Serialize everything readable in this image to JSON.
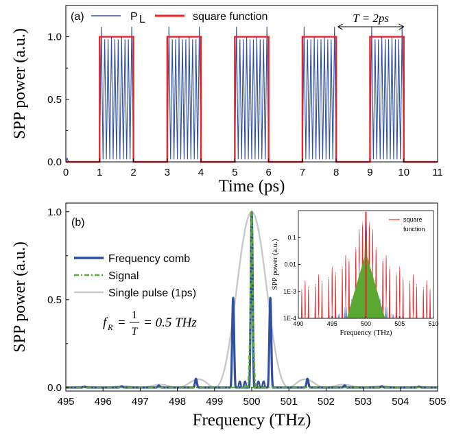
{
  "chart_data": [
    {
      "panel": "(a)",
      "type": "line",
      "xlabel": "Time (ps)",
      "ylabel": "SPP power (a.u.)",
      "xlim": [
        0,
        11
      ],
      "ylim": [
        0,
        1.25
      ],
      "xticks": [
        0,
        1,
        2,
        3,
        4,
        5,
        6,
        7,
        8,
        9,
        10,
        11
      ],
      "yticks": [
        "0.0",
        "0.5",
        "1.0"
      ],
      "grid": false,
      "legend": "top-left",
      "series": [
        {
          "name": "P",
          "name_subscript": "L",
          "color": "#2f4f9f",
          "kind": "pulse-train",
          "oscillation_period_ps": 0.1,
          "peak": 0.98,
          "pulse_start_ps": [
            1,
            3,
            5,
            7,
            9
          ],
          "pulse_width_ps": 1.0
        },
        {
          "name": "square function",
          "color": "#e8232a",
          "on_intervals_ps": [
            [
              1,
              2
            ],
            [
              3,
              4
            ],
            [
              5,
              6
            ],
            [
              7,
              8
            ],
            [
              9,
              10
            ]
          ],
          "low": 0.0,
          "high": 1.0
        }
      ],
      "annotations": [
        {
          "text": "T = 2ps",
          "from_x": 8.05,
          "to_x": 10.0,
          "y": 1.08
        }
      ]
    },
    {
      "panel": "(b)",
      "type": "line",
      "xlabel": "Frequency (THz)",
      "ylabel": "SPP power (a.u.)",
      "xlim": [
        495,
        505
      ],
      "ylim": [
        -0.02,
        1.05
      ],
      "xticks": [
        495,
        496,
        497,
        498,
        499,
        500,
        501,
        502,
        503,
        504,
        505
      ],
      "yticks": [
        "0.0",
        "0.5",
        "1.0"
      ],
      "grid": false,
      "legend": "middle-left",
      "series": [
        {
          "name": "Frequency comb",
          "color": "#2f4f9f",
          "peaks": [
            {
              "x": 495.5,
              "y": 0.005
            },
            {
              "x": 496.5,
              "y": 0.007
            },
            {
              "x": 497.5,
              "y": 0.012
            },
            {
              "x": 498.5,
              "y": 0.05
            },
            {
              "x": 499.5,
              "y": 0.51
            },
            {
              "x": 500.0,
              "y": 1.0
            },
            {
              "x": 500.5,
              "y": 0.51
            },
            {
              "x": 501.5,
              "y": 0.05
            },
            {
              "x": 502.5,
              "y": 0.012
            },
            {
              "x": 503.5,
              "y": 0.007
            },
            {
              "x": 504.5,
              "y": 0.005
            }
          ]
        },
        {
          "name": "Signal",
          "color": "#5aa832",
          "center": 500.0,
          "peak": 1.0
        },
        {
          "name": "Single pulse (1ps)",
          "color": "#c8c8c8",
          "center": 500.0,
          "peak": 1.0
        }
      ],
      "annotations": [
        {
          "text": "f_R = 1/T = 0.5 THz"
        }
      ],
      "inset": {
        "type": "line",
        "scale": "log",
        "xlabel": "Frequency (THz)",
        "ylabel": "SPP power (a.u.)",
        "xlim": [
          490,
          510
        ],
        "ylim": [
          0.0001,
          1
        ],
        "xticks": [
          490,
          495,
          500,
          505,
          510
        ],
        "yticks": [
          "1E-4",
          "1E-3",
          "0.01",
          "0.1"
        ],
        "legend": "top-right",
        "series": [
          {
            "name": "square function",
            "color": "#e8232a"
          },
          {
            "name": "",
            "color": "#2f4f9f"
          },
          {
            "name": "",
            "color": "#5aa832"
          }
        ]
      }
    }
  ],
  "text": {
    "panel_a": "(a)",
    "panel_b": "(b)",
    "legend_a_pl": "P",
    "legend_a_pl_sub": "L",
    "legend_a_sq": "square function",
    "period": "T = 2ps",
    "legend_b_comb": "Frequency comb",
    "legend_b_signal": "Signal",
    "legend_b_single": "Single pulse (1ps)",
    "formula_f": "f",
    "formula_sub": "R",
    "formula_eq": "=",
    "formula_num": "1",
    "formula_den": "T",
    "formula_rest": "= 0.5 THz",
    "inset_legend_1": "square",
    "inset_legend_2": "function"
  }
}
